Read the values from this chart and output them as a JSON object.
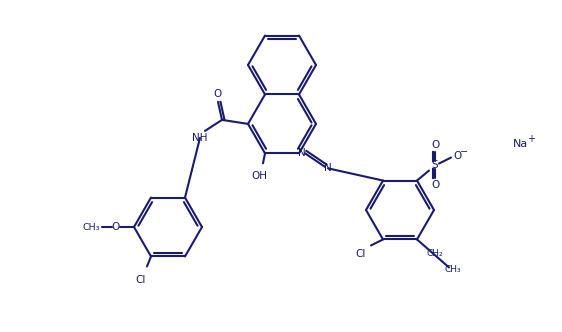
{
  "bg": "#ffffff",
  "lc": "#1a1a6e",
  "lw": 1.5,
  "fw": 5.43,
  "fh": 3.12,
  "dpi": 100
}
